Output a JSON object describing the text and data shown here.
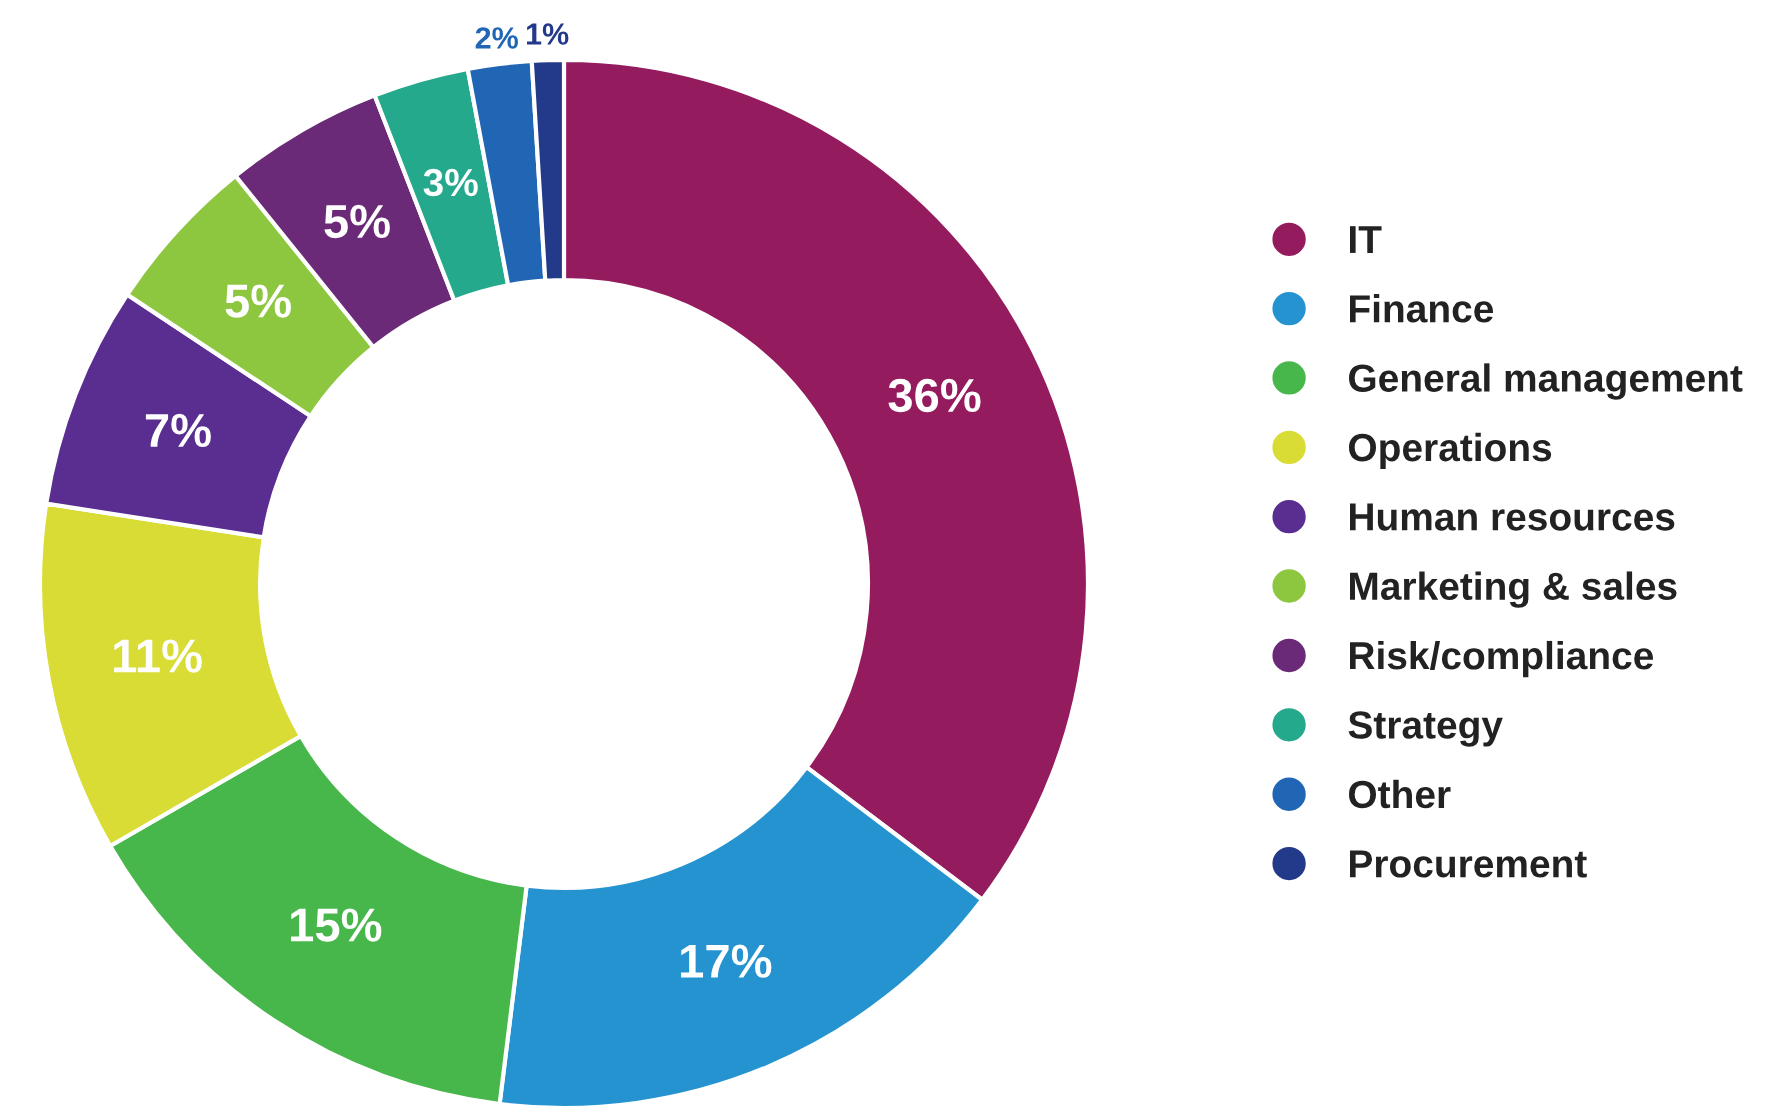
{
  "chart_data": {
    "type": "donut",
    "categories": [
      "IT",
      "Finance",
      "General management",
      "Operations",
      "Human resources",
      "Marketing & sales",
      "Risk/compliance",
      "Strategy",
      "Other",
      "Procurement"
    ],
    "values": [
      36,
      17,
      15,
      11,
      7,
      5,
      5,
      3,
      2,
      1
    ],
    "colors": [
      "#951b5f",
      "#2593d0",
      "#48b74b",
      "#d8dc34",
      "#5a2d91",
      "#8dc63f",
      "#6b2a78",
      "#25a98c",
      "#2166b4",
      "#233a8a"
    ],
    "value_labels": [
      "36%",
      "17%",
      "15%",
      "11%",
      "7%",
      "5%",
      "5%",
      "3%",
      "2%",
      "1%"
    ],
    "legend": "right"
  }
}
